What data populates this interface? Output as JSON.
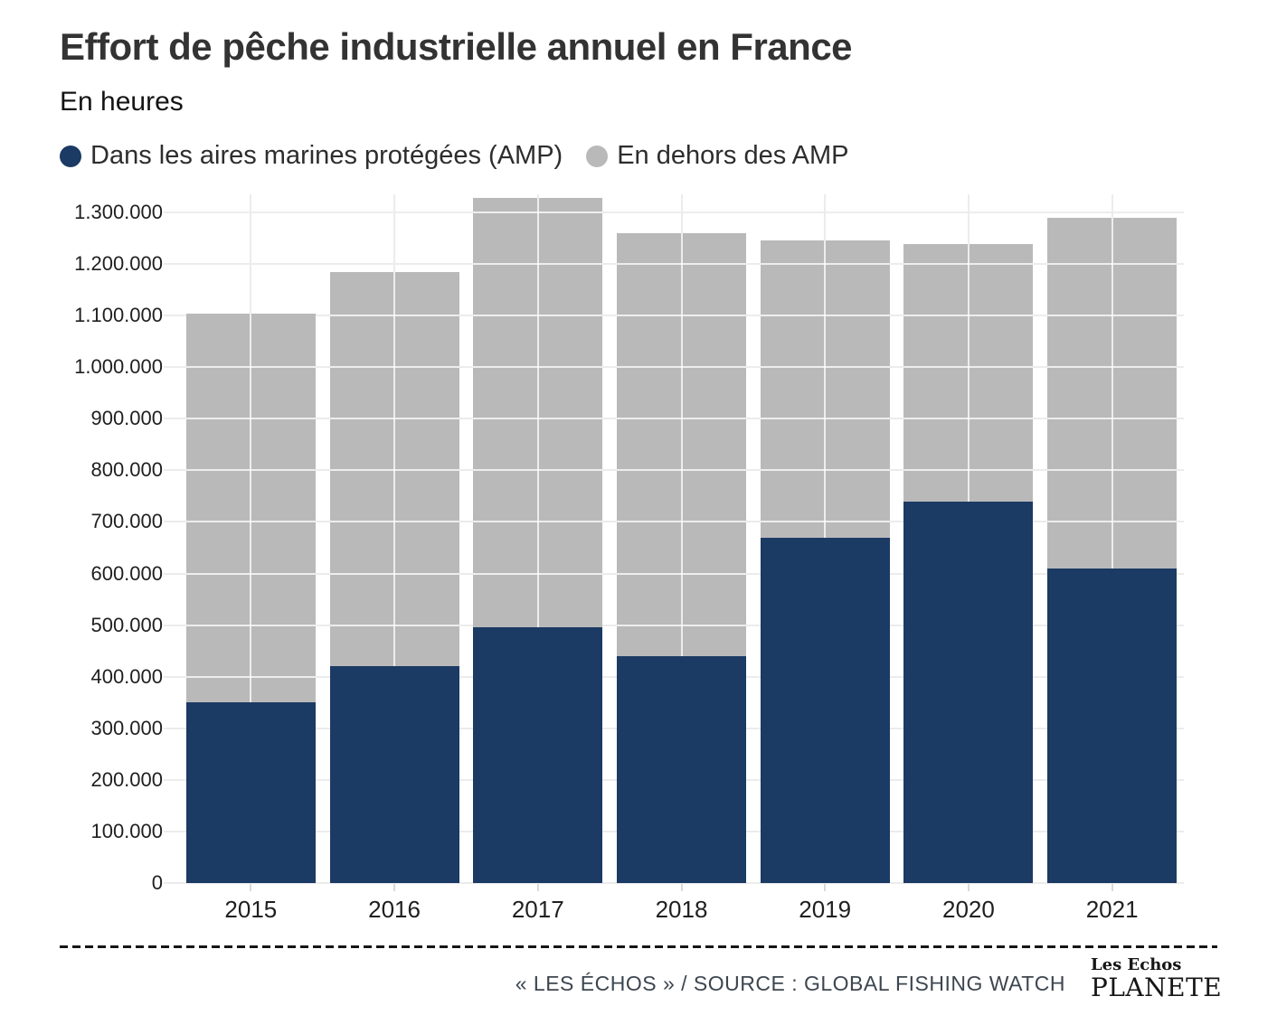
{
  "chart_data": {
    "type": "bar",
    "stacked": true,
    "title": "Effort de pêche industrielle annuel en France",
    "subtitle": "En heures",
    "categories": [
      "2015",
      "2016",
      "2017",
      "2018",
      "2019",
      "2020",
      "2021"
    ],
    "series": [
      {
        "name": "Dans les aires marines protégées (AMP)",
        "color": "#1b3a64",
        "values": [
          350000,
          420000,
          495000,
          440000,
          670000,
          740000,
          610000
        ]
      },
      {
        "name": "En dehors des AMP",
        "color": "#b9b9b9",
        "values": [
          753000,
          765000,
          833000,
          820000,
          575000,
          498000,
          680000
        ]
      }
    ],
    "totals": [
      1103000,
      1185000,
      1328000,
      1260000,
      1245000,
      1238000,
      1290000
    ],
    "xlabel": "",
    "ylabel": "",
    "ylim": [
      0,
      1335000
    ],
    "yticks": [
      0,
      100000,
      200000,
      300000,
      400000,
      500000,
      600000,
      700000,
      800000,
      900000,
      1000000,
      1100000,
      1200000,
      1300000
    ],
    "ytick_labels": [
      "0",
      "100.000",
      "200.000",
      "300.000",
      "400.000",
      "500.000",
      "600.000",
      "700.000",
      "800.000",
      "900.000",
      "1.000.000",
      "1.100.000",
      "1.200.000",
      "1.300.000"
    ],
    "grid": true,
    "legend_position": "top"
  },
  "footer": {
    "credit": "« LES ÉCHOS » / SOURCE : GLOBAL FISHING WATCH",
    "logo": {
      "line1": "Les Echos",
      "line2": "PLANETE"
    }
  }
}
